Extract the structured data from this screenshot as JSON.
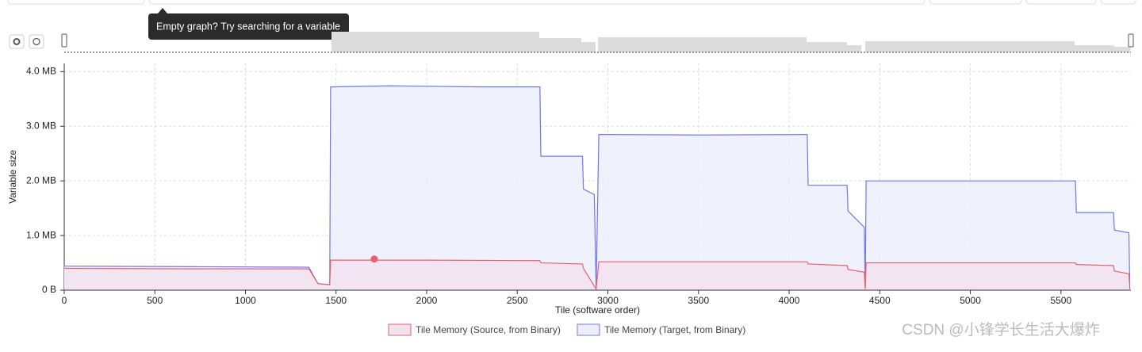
{
  "tooltip": "Empty graph? Try searching for a variable",
  "watermark": "CSDN @小锋学长生活大爆炸",
  "chart_data": {
    "type": "line",
    "x_label": "Tile (software order)",
    "y_label": "Variable size",
    "xlim": [
      0,
      5886
    ],
    "ylim": [
      0,
      4.15
    ],
    "xticks": [
      0,
      500,
      1000,
      1500,
      2000,
      2500,
      3000,
      3500,
      4000,
      4500,
      5000,
      5500
    ],
    "yticks": [
      {
        "value": 0,
        "label": "0 B"
      },
      {
        "value": 1,
        "label": "1.0 MB"
      },
      {
        "value": 2,
        "label": "2.0 MB"
      },
      {
        "value": 3,
        "label": "3.0 MB"
      },
      {
        "value": 4,
        "label": "4.0 MB"
      }
    ],
    "grid": true,
    "series": [
      {
        "name": "Tile Memory (Target, from Binary)",
        "color": "#6f78ea",
        "fill": "#eceefb",
        "x": [
          0,
          700,
          1350,
          1400,
          1465,
          1470,
          1800,
          2300,
          2625,
          2630,
          2860,
          2865,
          2925,
          2935,
          2950,
          3500,
          4100,
          4105,
          4320,
          4325,
          4415,
          4420,
          4425,
          5000,
          5580,
          5585,
          5790,
          5795,
          5875,
          5880
        ],
        "values": [
          0.44,
          0.43,
          0.42,
          0.12,
          0.1,
          3.72,
          3.74,
          3.72,
          3.72,
          2.45,
          2.45,
          1.85,
          1.75,
          0.05,
          2.85,
          2.84,
          2.85,
          1.92,
          1.92,
          1.45,
          1.15,
          0.05,
          2.0,
          2.0,
          2.0,
          1.42,
          1.42,
          1.1,
          1.05,
          0.02
        ]
      },
      {
        "name": "Tile Memory (Source, from Binary)",
        "color": "#e8606e",
        "fill": "#f3e2ee",
        "x": [
          0,
          700,
          1350,
          1400,
          1465,
          1470,
          2000,
          2625,
          2630,
          2860,
          2865,
          2935,
          2950,
          4100,
          4105,
          4320,
          4325,
          4415,
          4420,
          4425,
          5580,
          5585,
          5790,
          5795,
          5875,
          5880
        ],
        "values": [
          0.4,
          0.39,
          0.39,
          0.12,
          0.1,
          0.55,
          0.55,
          0.54,
          0.5,
          0.48,
          0.4,
          0.02,
          0.52,
          0.52,
          0.48,
          0.45,
          0.38,
          0.33,
          0.02,
          0.5,
          0.5,
          0.47,
          0.45,
          0.35,
          0.3,
          0.05
        ]
      }
    ],
    "highlight_point": {
      "x": 1711,
      "y": 0.57
    }
  }
}
